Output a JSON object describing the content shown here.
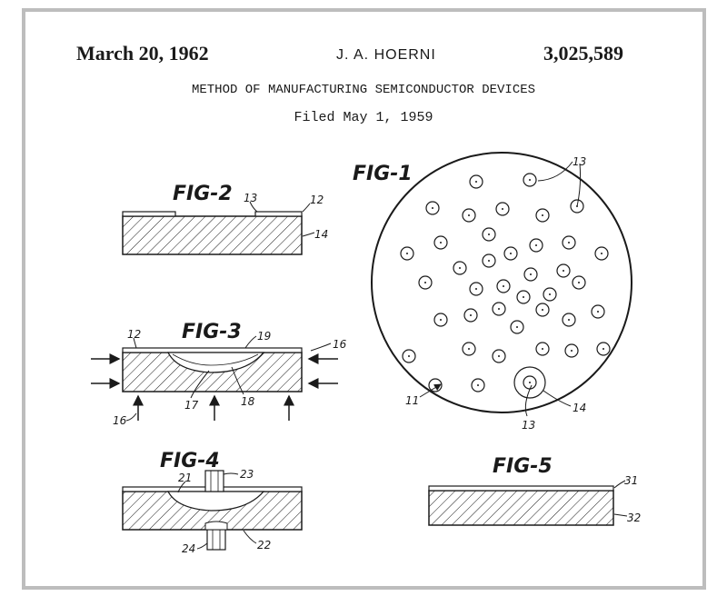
{
  "header": {
    "date": "March 20, 1962",
    "inventor": "J. A. HOERNI",
    "patent_number": "3,025,589"
  },
  "title": "METHOD OF MANUFACTURING SEMICONDUCTOR DEVICES",
  "filed": "Filed May 1, 1959",
  "figures": {
    "fig1": {
      "label": "FIG-1",
      "refs": {
        "wafer": "11",
        "dot_a": "13",
        "dot_b": "13",
        "ring": "14"
      }
    },
    "fig2": {
      "label": "FIG-2",
      "refs": {
        "opening": "13",
        "oxide": "12",
        "body": "14"
      }
    },
    "fig3": {
      "label": "FIG-3",
      "refs": {
        "oxide": "12",
        "layer": "19",
        "arrows_right": "16",
        "arrows_left": "16",
        "region": "17",
        "junction": "18"
      }
    },
    "fig4": {
      "label": "FIG-4",
      "refs": {
        "region": "21",
        "top_lead": "23",
        "bottom_lead": "24",
        "body": "22"
      }
    },
    "fig5": {
      "label": "FIG-5",
      "refs": {
        "oxide": "31",
        "body": "32"
      }
    }
  },
  "colors": {
    "ink": "#1a1a1a",
    "frame": "#bdbdbd",
    "paper": "#ffffff"
  }
}
